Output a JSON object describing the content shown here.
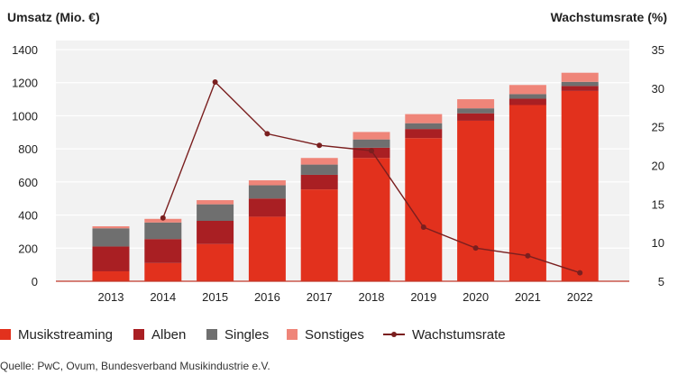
{
  "legend": {
    "streaming": "Musikstreaming",
    "albums": "Alben",
    "singles": "Singles",
    "other": "Sonstiges",
    "growth": "Wachstumsrate"
  },
  "source": "Quelle: PwC, Ovum, Bundesverband Musikindustrie e.V.",
  "colors": {
    "streaming": "#e2311d",
    "albums": "#a91f23",
    "singles": "#6f6f6f",
    "other": "#ef8579",
    "growth": "#7a1f1f",
    "plot_background": "#f2f2f2",
    "grid": "#ffffff"
  },
  "chart_data": {
    "type": "bar",
    "stacked": true,
    "title": "",
    "ylabel": "Umsatz (Mio. €)",
    "y2label": "Wachstumsrate (%)",
    "categories": [
      "2013",
      "2014",
      "2015",
      "2016",
      "2017",
      "2018",
      "2019",
      "2020",
      "2021",
      "2022"
    ],
    "ylim": [
      0,
      1400
    ],
    "yticks": [
      0,
      200,
      400,
      600,
      800,
      1000,
      1200,
      1400
    ],
    "y2lim": [
      5,
      35
    ],
    "y2ticks": [
      5,
      10,
      15,
      20,
      25,
      30,
      35
    ],
    "grid": true,
    "legend_position": "bottom",
    "series": [
      {
        "name": "Musikstreaming",
        "values": [
          60,
          110,
          225,
          390,
          555,
          745,
          865,
          970,
          1065,
          1150
        ]
      },
      {
        "name": "Alben",
        "values": [
          150,
          145,
          140,
          110,
          88,
          62,
          55,
          45,
          38,
          30
        ]
      },
      {
        "name": "Singles",
        "values": [
          110,
          100,
          100,
          80,
          62,
          50,
          35,
          30,
          28,
          25
        ]
      },
      {
        "name": "Sonstiges",
        "values": [
          12,
          22,
          25,
          30,
          40,
          45,
          55,
          55,
          55,
          55
        ]
      }
    ],
    "line_series": {
      "name": "Wachstumsrate",
      "axis": "right",
      "values": [
        null,
        13.2,
        30.8,
        24.1,
        22.6,
        21.9,
        12.0,
        9.3,
        8.3,
        6.1
      ]
    }
  }
}
